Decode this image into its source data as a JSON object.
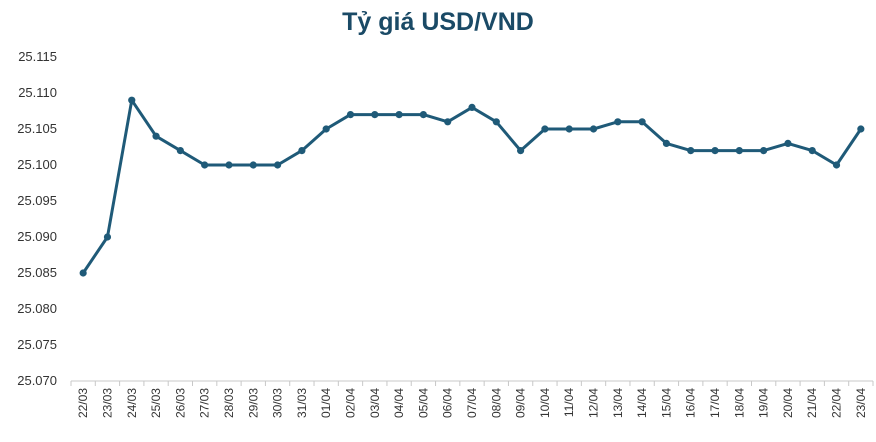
{
  "chart_data": {
    "type": "line",
    "title": "Tỷ giá USD/VND",
    "xlabel": "",
    "ylabel": "",
    "ylim": [
      25.07,
      25.115
    ],
    "y_ticks": [
      "25.070",
      "25.075",
      "25.080",
      "25.085",
      "25.090",
      "25.095",
      "25.100",
      "25.105",
      "25.110",
      "25.115"
    ],
    "grid": false,
    "legend": "none",
    "line_color": "#1f5a78",
    "categories": [
      "22/03",
      "23/03",
      "24/03",
      "25/03",
      "26/03",
      "27/03",
      "28/03",
      "29/03",
      "30/03",
      "31/03",
      "01/04",
      "02/04",
      "03/04",
      "04/04",
      "05/04",
      "06/04",
      "07/04",
      "08/04",
      "09/04",
      "10/04",
      "11/04",
      "12/04",
      "13/04",
      "14/04",
      "15/04",
      "16/04",
      "17/04",
      "18/04",
      "19/04",
      "20/04",
      "21/04",
      "22/04",
      "23/04"
    ],
    "series": [
      {
        "values": [
          25.085,
          25.09,
          25.109,
          25.104,
          25.102,
          25.1,
          25.1,
          25.1,
          25.1,
          25.102,
          25.105,
          25.107,
          25.107,
          25.107,
          25.107,
          25.106,
          25.108,
          25.106,
          25.102,
          25.105,
          25.105,
          25.105,
          25.106,
          25.106,
          25.103,
          25.102,
          25.102,
          25.102,
          25.102,
          25.103,
          25.102,
          25.1,
          25.105
        ]
      }
    ]
  }
}
